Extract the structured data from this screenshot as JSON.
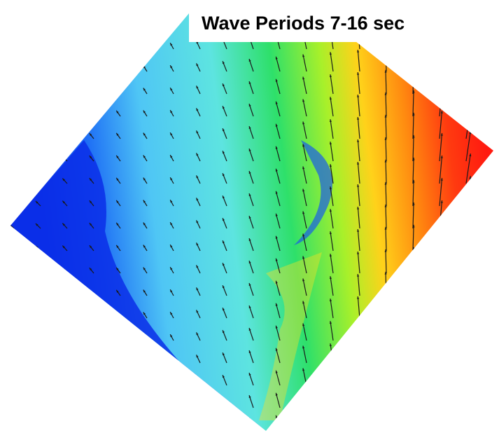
{
  "title": "Wave Periods 7-16 sec"
}
